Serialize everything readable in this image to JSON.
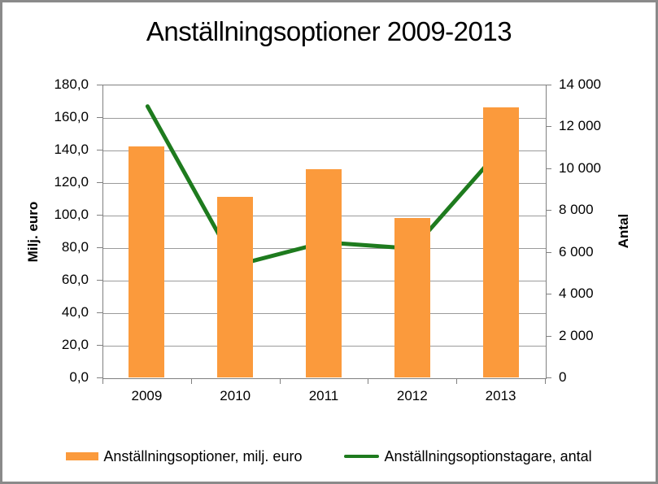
{
  "title": "Anställningsoptioner 2009-2013",
  "chart_data": {
    "type": "bar+line",
    "categories": [
      "2009",
      "2010",
      "2011",
      "2012",
      "2013"
    ],
    "series": [
      {
        "name": "Anställningsoptioner, milj. euro",
        "type": "bar",
        "axis": "left",
        "color": "#FB9A3C",
        "values": [
          142,
          111,
          128,
          98,
          166
        ]
      },
      {
        "name": "Anställningsoptionstagare, antal",
        "type": "line",
        "axis": "right",
        "color": "#1E7B1E",
        "values": [
          13000,
          5400,
          6500,
          6200,
          11000
        ]
      }
    ],
    "left_axis": {
      "label": "Milj. euro",
      "min": 0,
      "max": 180,
      "step": 20,
      "tick_labels": [
        "180,0",
        "160,0",
        "140,0",
        "120,0",
        "100,0",
        "80,0",
        "60,0",
        "40,0",
        "20,0",
        "0,0"
      ]
    },
    "right_axis": {
      "label": "Antal",
      "min": 0,
      "max": 14000,
      "step": 2000,
      "tick_labels": [
        "14 000",
        "12 000",
        "10 000",
        "8 000",
        "6 000",
        "4 000",
        "2 000",
        "0"
      ]
    },
    "grid": true,
    "legend_position": "bottom"
  },
  "colors": {
    "frame_border": "#8a8a8a",
    "plot_border": "#808080",
    "gridline": "#9b9b9b",
    "tick": "#808080",
    "text": "#000000"
  }
}
